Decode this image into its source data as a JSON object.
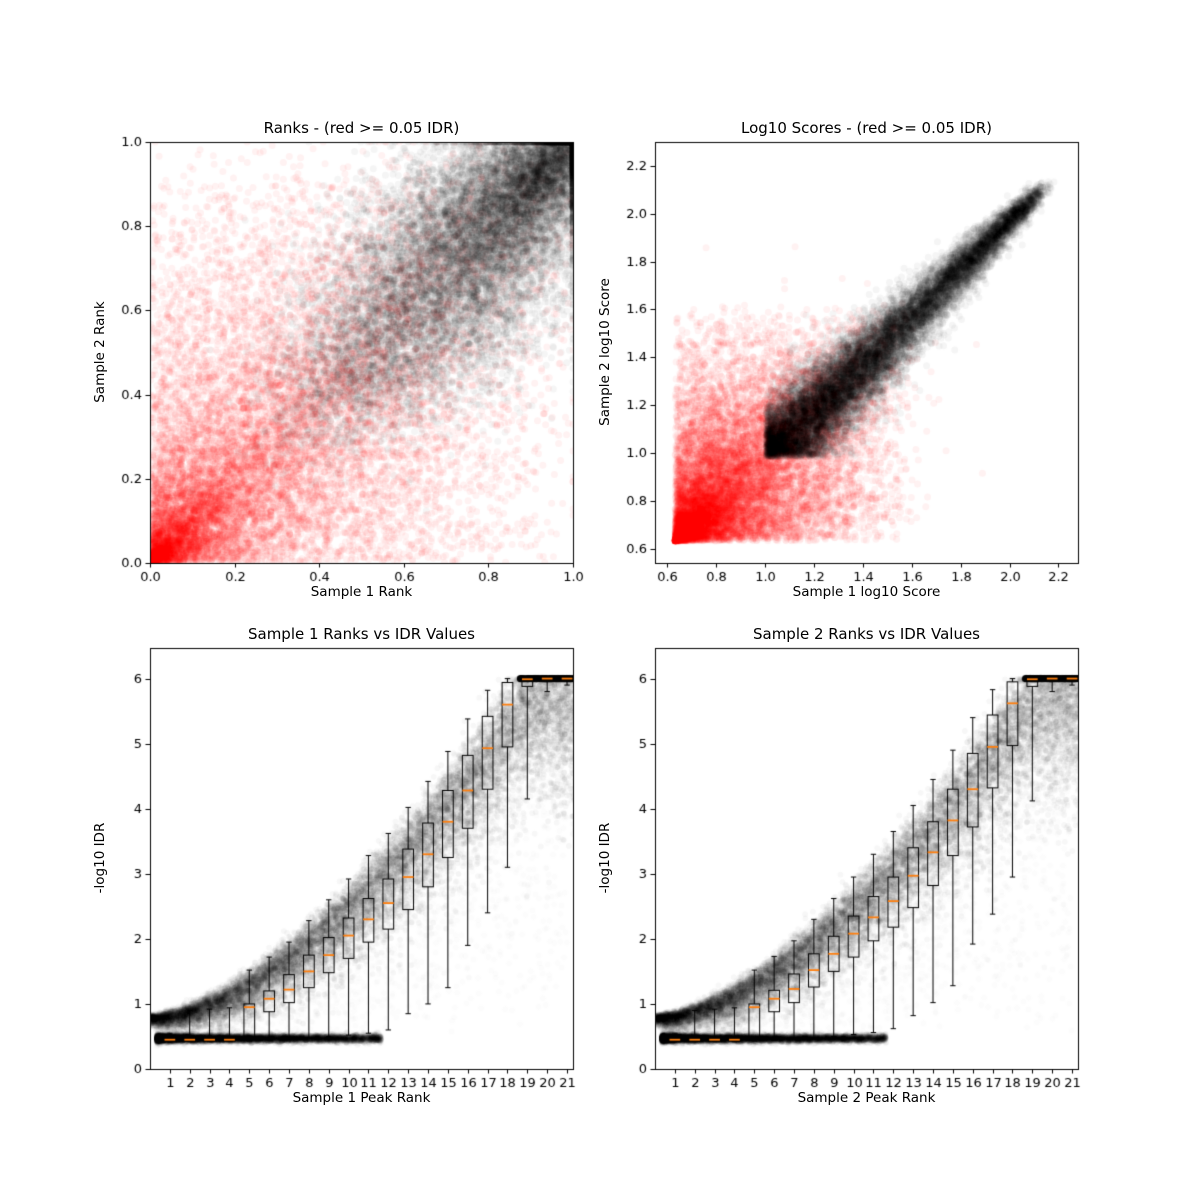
{
  "figure": {
    "background": "#ffffff"
  },
  "colors": {
    "axis": "#000000",
    "pass_points": "#000000",
    "fail_points": "#ff0000",
    "box": "#000000",
    "median": "#ff7f0e"
  },
  "chart_data": [
    {
      "id": "ranks-scatter",
      "type": "scatter",
      "title": "Ranks - (red >= 0.05 IDR)",
      "xlabel": "Sample 1 Rank",
      "ylabel": "Sample 2 Rank",
      "xlim": [
        0.0,
        1.0
      ],
      "ylim": [
        0.0,
        1.0
      ],
      "grid": false,
      "legend": "none",
      "xticks": {
        "values": [
          0.0,
          0.2,
          0.4,
          0.6,
          0.8,
          1.0
        ],
        "labels": [
          "0.0",
          "0.2",
          "0.4",
          "0.6",
          "0.8",
          "1.0"
        ]
      },
      "yticks": {
        "values": [
          0.0,
          0.2,
          0.4,
          0.6,
          0.8,
          1.0
        ],
        "labels": [
          "0.0",
          "0.2",
          "0.4",
          "0.6",
          "0.8",
          "1.0"
        ]
      },
      "series": [
        {
          "name": "IDR >= 0.05 (red)",
          "model": "rank_red",
          "color": "#ff0000",
          "alpha": 0.05,
          "n": 13000
        },
        {
          "name": "IDR < 0.05 (black)",
          "model": "rank_black",
          "color": "#000000",
          "alpha": 0.04,
          "n": 15000
        }
      ]
    },
    {
      "id": "log10-scores-scatter",
      "type": "scatter",
      "title": "Log10 Scores - (red >= 0.05 IDR)",
      "xlabel": "Sample 1 log10 Score",
      "ylabel": "Sample 2 log10 Score",
      "xlim": [
        0.55,
        2.28
      ],
      "ylim": [
        0.54,
        2.3
      ],
      "grid": false,
      "legend": "none",
      "xticks": {
        "values": [
          0.6,
          0.8,
          1.0,
          1.2,
          1.4,
          1.6,
          1.8,
          2.0,
          2.2
        ],
        "labels": [
          "0.6",
          "0.8",
          "1.0",
          "1.2",
          "1.4",
          "1.6",
          "1.8",
          "2.0",
          "2.2"
        ]
      },
      "yticks": {
        "values": [
          0.6,
          0.8,
          1.0,
          1.2,
          1.4,
          1.6,
          1.8,
          2.0,
          2.2
        ],
        "labels": [
          "0.6",
          "0.8",
          "1.0",
          "1.2",
          "1.4",
          "1.6",
          "1.8",
          "2.0",
          "2.2"
        ]
      },
      "series": [
        {
          "name": "IDR >= 0.05 (red)",
          "model": "log_red",
          "color": "#ff0000",
          "alpha": 0.05,
          "n": 13000
        },
        {
          "name": "IDR < 0.05 (black)",
          "model": "log_black",
          "color": "#000000",
          "alpha": 0.04,
          "n": 15000
        }
      ]
    },
    {
      "id": "sample1-rank-vs-idr",
      "type": "scatter+boxplot",
      "title": "Sample 1 Ranks vs IDR Values",
      "xlabel": "Sample 1 Peak Rank",
      "ylabel": "-log10 IDR",
      "xlim": [
        0.0,
        21.3
      ],
      "ylim": [
        0.0,
        6.47
      ],
      "grid": false,
      "legend": "none",
      "xticks": {
        "values": [
          1,
          2,
          3,
          4,
          5,
          6,
          7,
          8,
          9,
          10,
          11,
          12,
          13,
          14,
          15,
          16,
          17,
          18,
          19,
          20,
          21
        ],
        "labels": [
          "1",
          "2",
          "3",
          "4",
          "5",
          "6",
          "7",
          "8",
          "9",
          "10",
          "11",
          "12",
          "13",
          "14",
          "15",
          "16",
          "17",
          "18",
          "19",
          "20",
          "21"
        ]
      },
      "yticks": {
        "values": [
          0,
          1,
          2,
          3,
          4,
          5,
          6
        ],
        "labels": [
          "0",
          "1",
          "2",
          "3",
          "4",
          "5",
          "6"
        ]
      },
      "curve": {
        "c0": 0.72,
        "a": 0.0476,
        "p": 1.6,
        "ymax": 6.0
      },
      "series": [
        {
          "name": "idr curve band",
          "model": "idr_curve",
          "color": "#000000",
          "alpha": 0.03,
          "n": 13000
        },
        {
          "name": "idr floor band",
          "model": "idr_floor",
          "color": "#000000",
          "alpha": 0.03,
          "n": 7000
        },
        {
          "name": "idr sparse fill",
          "model": "idr_fill",
          "color": "#000000",
          "alpha": 0.012,
          "n": 2200
        },
        {
          "name": "idr cap line at 6",
          "model": "idr_topline",
          "color": "#000000",
          "alpha": 0.05,
          "n": 2500
        }
      ],
      "boxplot": {
        "box_color": "#000000",
        "median_color": "#ff7f0e",
        "positions": [
          1,
          2,
          3,
          4,
          5,
          6,
          7,
          8,
          9,
          10,
          11,
          12,
          13,
          14,
          15,
          16,
          17,
          18,
          19,
          20,
          21
        ],
        "whislo": [
          0.42,
          0.42,
          0.42,
          0.42,
          0.43,
          0.44,
          0.46,
          0.48,
          0.5,
          0.52,
          0.55,
          0.6,
          0.85,
          1.0,
          1.25,
          1.9,
          2.4,
          3.1,
          4.15,
          5.8,
          5.9
        ],
        "q1": [
          0.43,
          0.43,
          0.43,
          0.43,
          0.48,
          0.88,
          1.02,
          1.25,
          1.48,
          1.7,
          1.95,
          2.15,
          2.45,
          2.8,
          3.25,
          3.7,
          4.3,
          4.95,
          5.88,
          5.97,
          5.97
        ],
        "med": [
          0.45,
          0.45,
          0.45,
          0.45,
          0.95,
          1.08,
          1.22,
          1.5,
          1.75,
          2.05,
          2.3,
          2.55,
          2.95,
          3.3,
          3.8,
          4.28,
          4.93,
          5.6,
          5.99,
          6.0,
          6.0
        ],
        "q3": [
          0.48,
          0.48,
          0.48,
          0.48,
          1.0,
          1.2,
          1.45,
          1.75,
          2.02,
          2.32,
          2.62,
          2.92,
          3.38,
          3.78,
          4.28,
          4.82,
          5.42,
          5.94,
          6.0,
          6.0,
          6.0
        ],
        "whishi": [
          0.55,
          0.9,
          0.92,
          0.94,
          1.52,
          1.72,
          1.95,
          2.28,
          2.6,
          2.92,
          3.28,
          3.62,
          4.02,
          4.42,
          4.88,
          5.38,
          5.82,
          6.0,
          6.0,
          6.0,
          6.0
        ]
      }
    },
    {
      "id": "sample2-rank-vs-idr",
      "type": "scatter+boxplot",
      "title": "Sample 2 Ranks vs IDR Values",
      "xlabel": "Sample 2 Peak Rank",
      "ylabel": "-log10 IDR",
      "xlim": [
        0.0,
        21.3
      ],
      "ylim": [
        0.0,
        6.47
      ],
      "grid": false,
      "legend": "none",
      "xticks": {
        "values": [
          1,
          2,
          3,
          4,
          5,
          6,
          7,
          8,
          9,
          10,
          11,
          12,
          13,
          14,
          15,
          16,
          17,
          18,
          19,
          20,
          21
        ],
        "labels": [
          "1",
          "2",
          "3",
          "4",
          "5",
          "6",
          "7",
          "8",
          "9",
          "10",
          "11",
          "12",
          "13",
          "14",
          "15",
          "16",
          "17",
          "18",
          "19",
          "20",
          "21"
        ]
      },
      "yticks": {
        "values": [
          0,
          1,
          2,
          3,
          4,
          5,
          6
        ],
        "labels": [
          "0",
          "1",
          "2",
          "3",
          "4",
          "5",
          "6"
        ]
      },
      "curve": {
        "c0": 0.72,
        "a": 0.0476,
        "p": 1.6,
        "ymax": 6.0
      },
      "series": [
        {
          "name": "idr curve band",
          "model": "idr_curve",
          "color": "#000000",
          "alpha": 0.03,
          "n": 13000
        },
        {
          "name": "idr floor band",
          "model": "idr_floor",
          "color": "#000000",
          "alpha": 0.03,
          "n": 7000
        },
        {
          "name": "idr sparse fill",
          "model": "idr_fill",
          "color": "#000000",
          "alpha": 0.012,
          "n": 2200
        },
        {
          "name": "idr cap line at 6",
          "model": "idr_topline",
          "color": "#000000",
          "alpha": 0.05,
          "n": 2500
        }
      ],
      "boxplot": {
        "box_color": "#000000",
        "median_color": "#ff7f0e",
        "positions": [
          1,
          2,
          3,
          4,
          5,
          6,
          7,
          8,
          9,
          10,
          11,
          12,
          13,
          14,
          15,
          16,
          17,
          18,
          19,
          20,
          21
        ],
        "whislo": [
          0.42,
          0.42,
          0.42,
          0.42,
          0.43,
          0.44,
          0.46,
          0.48,
          0.5,
          0.53,
          0.56,
          0.62,
          0.82,
          1.02,
          1.28,
          1.92,
          2.38,
          2.95,
          4.12,
          5.8,
          5.9
        ],
        "q1": [
          0.43,
          0.43,
          0.43,
          0.43,
          0.48,
          0.88,
          1.02,
          1.26,
          1.5,
          1.72,
          1.97,
          2.18,
          2.48,
          2.82,
          3.28,
          3.72,
          4.32,
          4.97,
          5.88,
          5.97,
          5.97
        ],
        "med": [
          0.45,
          0.45,
          0.45,
          0.45,
          0.95,
          1.08,
          1.23,
          1.52,
          1.77,
          2.08,
          2.33,
          2.58,
          2.97,
          3.33,
          3.82,
          4.3,
          4.95,
          5.62,
          5.99,
          6.0,
          6.0
        ],
        "q3": [
          0.48,
          0.48,
          0.48,
          0.48,
          1.0,
          1.21,
          1.46,
          1.77,
          2.04,
          2.35,
          2.65,
          2.95,
          3.4,
          3.8,
          4.3,
          4.85,
          5.44,
          5.95,
          6.0,
          6.0,
          6.0
        ],
        "whishi": [
          0.55,
          0.9,
          0.92,
          0.94,
          1.52,
          1.73,
          1.97,
          2.3,
          2.62,
          2.95,
          3.3,
          3.65,
          4.05,
          4.45,
          4.9,
          5.4,
          5.83,
          6.0,
          6.0,
          6.0,
          6.0
        ]
      }
    }
  ]
}
